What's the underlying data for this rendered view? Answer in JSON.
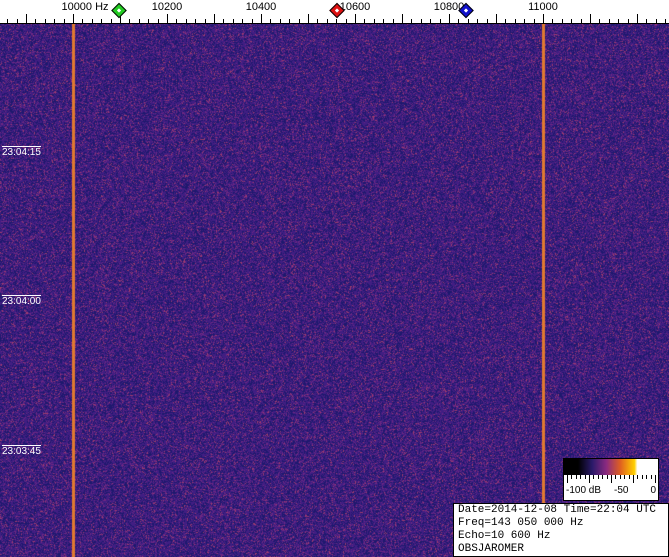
{
  "chart_data": {
    "type": "heatmap",
    "x_axis": {
      "unit": "Hz",
      "tick_labels": [
        "10000 Hz",
        "10200",
        "10400",
        "10600",
        "10800",
        "11000"
      ],
      "tick_values": [
        10000,
        10200,
        10400,
        10600,
        10800,
        11000
      ],
      "range": [
        9845,
        11270
      ]
    },
    "y_axis": {
      "tick_labels": [
        "23:04:15",
        "23:04:00",
        "23:03:45"
      ]
    },
    "carrier_lines_hz": [
      10000,
      11000
    ],
    "markers": [
      {
        "color": "#22cc22",
        "freq_hz": 10098
      },
      {
        "color": "#dd1111",
        "freq_hz": 10562
      },
      {
        "color": "#1111cc",
        "freq_hz": 10836
      }
    ],
    "colorbar": {
      "labels": [
        "-100 dB",
        "-50",
        "0"
      ],
      "range_db": [
        -100,
        0
      ]
    }
  },
  "colors": {
    "background": "#3a1f8a",
    "carrier": "#e07a30"
  },
  "info": {
    "line1": "Date=2014-12-08 Time=22:04 UTC",
    "line2": "Freq=143 050 000 Hz",
    "line3": "Echo=10 600 Hz",
    "line4": "OBSJAROMER"
  }
}
